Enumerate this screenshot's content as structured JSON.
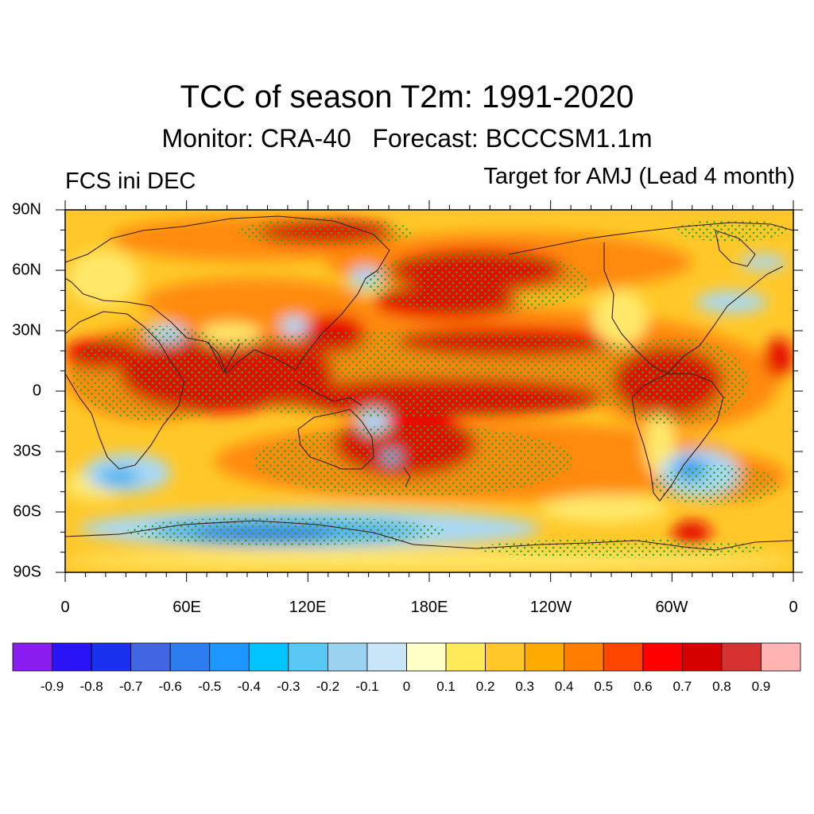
{
  "title": "TCC of season T2m: 1991-2020",
  "subtitle": "Monitor: CRA-40   Forecast: BCCCSM1.1m",
  "left_label": "FCS ini DEC",
  "right_label": "Target for AMJ (Lead 4 month)",
  "axes": {
    "lat_labels": [
      "90N",
      "60N",
      "30N",
      "0",
      "30S",
      "60S",
      "90S"
    ],
    "lon_labels": [
      "0",
      "60E",
      "120E",
      "180E",
      "120W",
      "60W",
      "0"
    ]
  },
  "colorbar": {
    "colors": [
      "#8a1ef0",
      "#2a14f5",
      "#1a32f0",
      "#4166e4",
      "#2e7df0",
      "#1e96ff",
      "#00c3ff",
      "#5ac8f5",
      "#9bd2f0",
      "#c8e6f8",
      "#ffffc8",
      "#ffeb5a",
      "#ffc828",
      "#ffaa00",
      "#ff7d00",
      "#ff4600",
      "#ff0000",
      "#d70000",
      "#d73232",
      "#ffb4b4"
    ],
    "labels": [
      "-0.9",
      "-0.8",
      "-0.7",
      "-0.6",
      "-0.5",
      "-0.4",
      "-0.3",
      "-0.2",
      "-0.1",
      "0",
      "0.1",
      "0.2",
      "0.3",
      "0.4",
      "0.5",
      "0.6",
      "0.7",
      "0.8",
      "0.9"
    ]
  },
  "stipple_color": "#22b022",
  "coast_color": "#3a1a0a"
}
